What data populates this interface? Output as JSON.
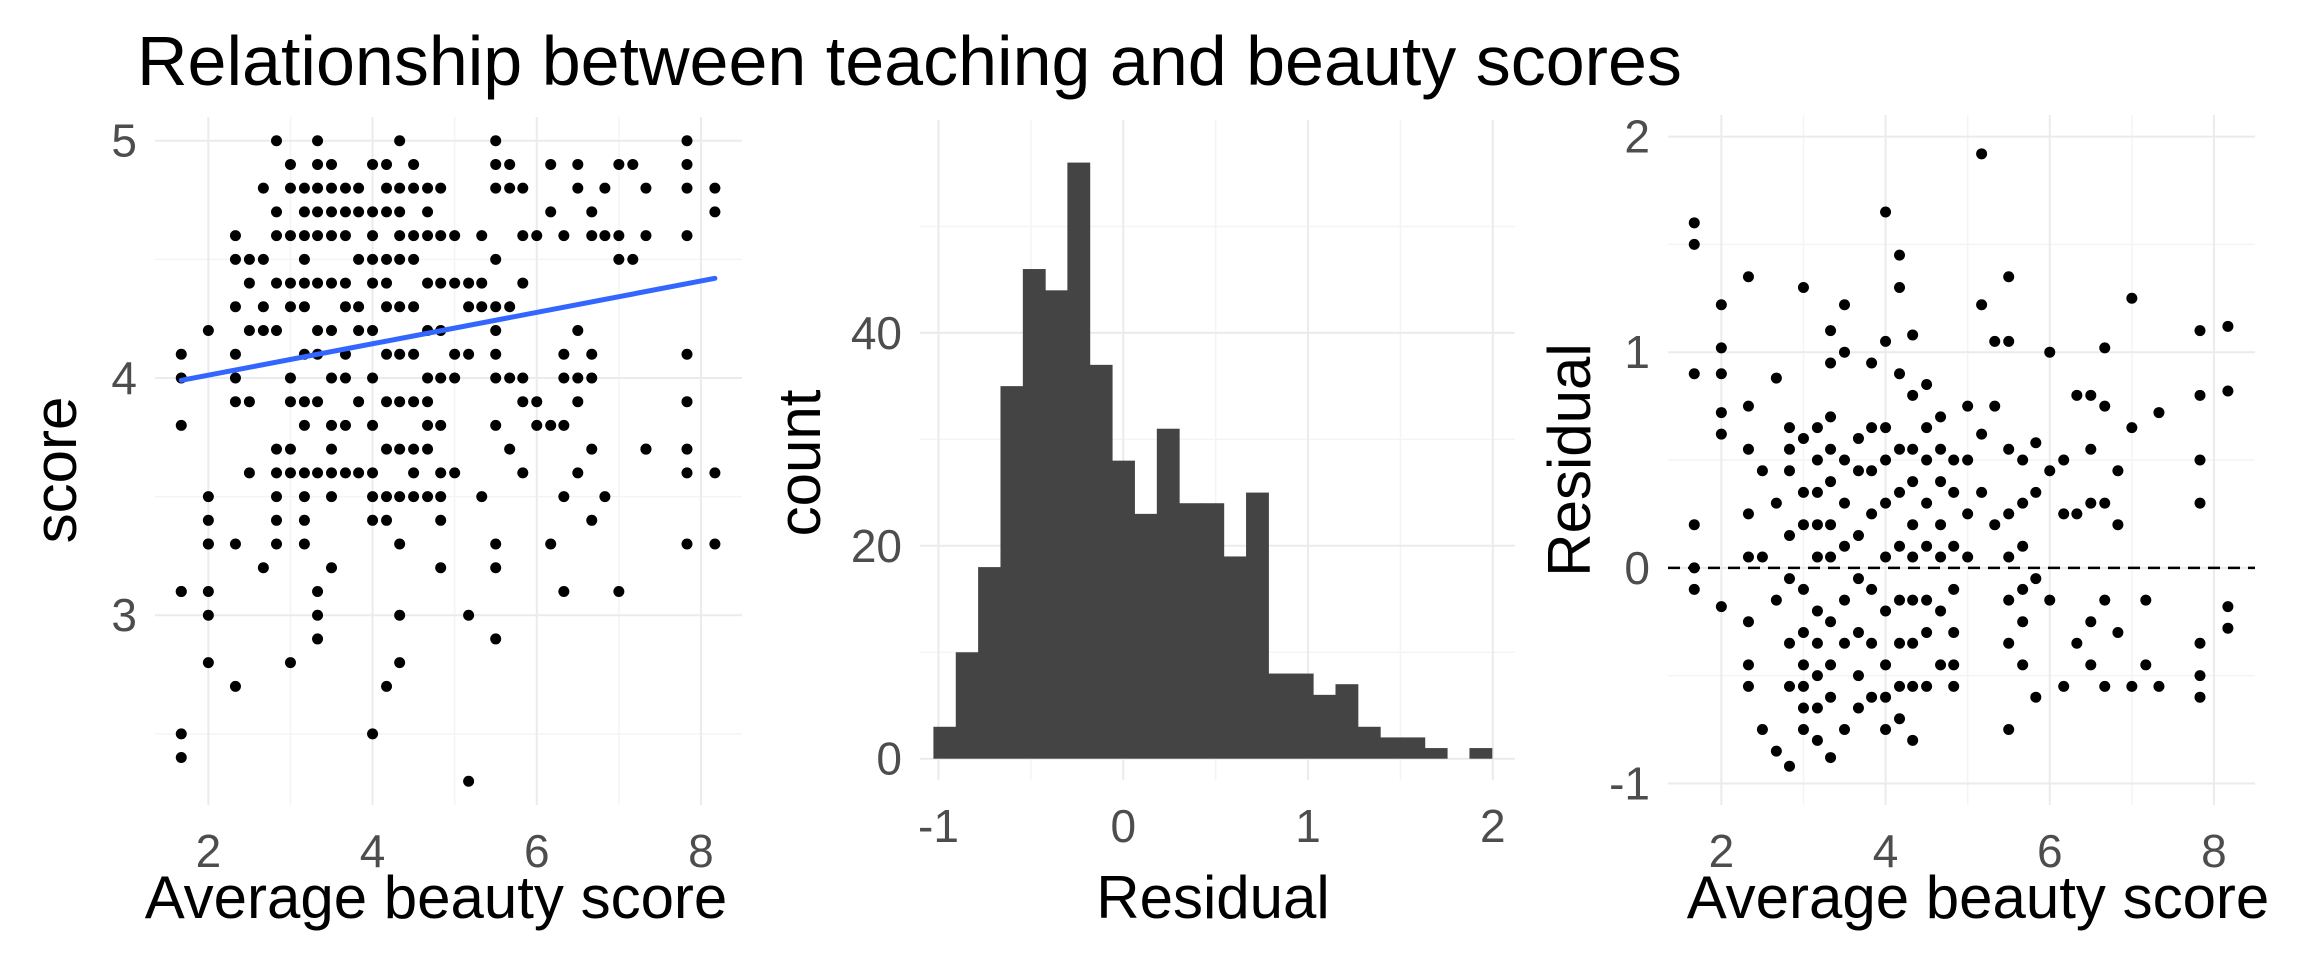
{
  "title": "Relationship between teaching and beauty scores",
  "colors": {
    "point": "#000000",
    "fit_line": "#3366FF",
    "bar": "#444444",
    "grid": "#EBEBEB",
    "tick_text": "#4D4D4D"
  },
  "chart_data": [
    {
      "type": "scatter",
      "xlabel": "Average beauty score",
      "ylabel": "score",
      "xlim": [
        1.35,
        8.5
      ],
      "ylim": [
        2.2,
        5.1
      ],
      "xticks": [
        "2",
        "4",
        "6",
        "8"
      ],
      "yticks": [
        "3",
        "4",
        "5"
      ],
      "grid": true,
      "fit_line": {
        "x": [
          1.67,
          8.17
        ],
        "y": [
          3.99,
          4.42
        ]
      },
      "x": [
        1.67,
        1.67,
        1.67,
        1.67,
        1.67,
        1.67,
        1.67,
        2.0,
        2.0,
        2.0,
        2.0,
        2.0,
        2.0,
        2.0,
        2.0,
        2.33,
        2.33,
        2.33,
        2.33,
        2.33,
        2.33,
        2.33,
        2.33,
        2.5,
        2.5,
        2.5,
        2.5,
        2.5,
        2.67,
        2.67,
        2.67,
        2.67,
        2.67,
        2.83,
        2.83,
        2.83,
        2.83,
        2.83,
        2.83,
        2.83,
        2.83,
        2.83,
        2.83,
        3.0,
        3.0,
        3.0,
        3.0,
        3.0,
        3.0,
        3.0,
        3.0,
        3.0,
        3.0,
        3.17,
        3.17,
        3.17,
        3.17,
        3.17,
        3.17,
        3.17,
        3.17,
        3.17,
        3.17,
        3.17,
        3.17,
        3.17,
        3.33,
        3.33,
        3.33,
        3.33,
        3.33,
        3.33,
        3.33,
        3.33,
        3.33,
        3.33,
        3.33,
        3.33,
        3.33,
        3.5,
        3.5,
        3.5,
        3.5,
        3.5,
        3.5,
        3.5,
        3.5,
        3.5,
        3.5,
        3.5,
        3.5,
        3.67,
        3.67,
        3.67,
        3.67,
        3.67,
        3.67,
        3.67,
        3.67,
        3.67,
        3.83,
        3.83,
        3.83,
        3.83,
        3.83,
        3.83,
        3.83,
        4.0,
        4.0,
        4.0,
        4.0,
        4.0,
        4.0,
        4.0,
        4.0,
        4.0,
        4.0,
        4.0,
        4.0,
        4.17,
        4.17,
        4.17,
        4.17,
        4.17,
        4.17,
        4.17,
        4.17,
        4.17,
        4.17,
        4.17,
        4.17,
        4.33,
        4.33,
        4.33,
        4.33,
        4.33,
        4.33,
        4.33,
        4.33,
        4.33,
        4.33,
        4.33,
        4.33,
        4.33,
        4.5,
        4.5,
        4.5,
        4.5,
        4.5,
        4.5,
        4.5,
        4.5,
        4.5,
        4.5,
        4.67,
        4.67,
        4.67,
        4.67,
        4.67,
        4.67,
        4.67,
        4.67,
        4.67,
        4.67,
        4.83,
        4.83,
        4.83,
        4.83,
        4.83,
        4.83,
        4.83,
        4.83,
        4.83,
        4.83,
        5.0,
        5.0,
        5.0,
        5.0,
        5.0,
        5.17,
        5.17,
        5.17,
        5.17,
        5.17,
        5.33,
        5.33,
        5.33,
        5.33,
        5.5,
        5.5,
        5.5,
        5.5,
        5.5,
        5.5,
        5.5,
        5.5,
        5.5,
        5.5,
        5.5,
        5.5,
        5.67,
        5.67,
        5.67,
        5.67,
        5.67,
        5.83,
        5.83,
        5.83,
        5.83,
        5.83,
        5.83,
        6.0,
        6.0,
        6.0,
        6.17,
        6.17,
        6.17,
        6.17,
        6.33,
        6.33,
        6.33,
        6.33,
        6.33,
        6.33,
        6.5,
        6.5,
        6.5,
        6.5,
        6.5,
        6.5,
        6.67,
        6.67,
        6.67,
        6.67,
        6.67,
        6.67,
        6.83,
        6.83,
        6.83,
        7.0,
        7.0,
        7.0,
        7.0,
        7.17,
        7.17,
        7.33,
        7.33,
        7.33,
        7.33,
        7.83,
        7.83,
        7.83,
        7.83,
        7.83,
        7.83,
        7.83,
        7.83,
        7.83,
        8.17,
        8.17,
        8.17,
        8.17
      ],
      "y": [
        4.1,
        4.0,
        3.8,
        3.1,
        2.5,
        2.4,
        3.1,
        4.2,
        3.4,
        3.3,
        3.1,
        3.0,
        2.8,
        3.5,
        3.3,
        4.6,
        4.5,
        4.3,
        4.1,
        4.0,
        3.9,
        3.3,
        2.7,
        4.5,
        4.4,
        4.2,
        3.9,
        3.6,
        4.8,
        4.5,
        4.3,
        4.2,
        3.2,
        5.0,
        4.7,
        4.6,
        4.4,
        4.2,
        3.7,
        3.6,
        3.5,
        3.4,
        3.3,
        4.9,
        4.8,
        4.6,
        4.4,
        4.3,
        4.0,
        3.9,
        3.7,
        3.6,
        2.8,
        4.8,
        4.7,
        4.6,
        4.5,
        4.4,
        4.3,
        4.1,
        3.9,
        3.8,
        3.6,
        3.5,
        3.4,
        3.3,
        5.0,
        4.9,
        4.8,
        4.7,
        4.6,
        4.4,
        4.2,
        4.1,
        3.9,
        3.6,
        3.1,
        3.0,
        2.9,
        4.9,
        4.8,
        4.7,
        4.6,
        4.4,
        4.2,
        4.0,
        3.8,
        3.7,
        3.6,
        3.2,
        3.5,
        4.8,
        4.7,
        4.6,
        4.4,
        4.3,
        4.1,
        4.0,
        3.8,
        3.6,
        4.8,
        4.7,
        4.5,
        4.3,
        4.2,
        3.9,
        3.6,
        4.9,
        4.7,
        4.6,
        4.5,
        4.4,
        4.2,
        4.0,
        3.8,
        3.6,
        3.5,
        2.5,
        3.4,
        4.9,
        4.8,
        4.7,
        4.5,
        4.4,
        4.3,
        4.1,
        3.9,
        3.7,
        3.5,
        3.4,
        2.7,
        5.0,
        4.8,
        4.7,
        4.6,
        4.5,
        4.3,
        4.1,
        3.9,
        3.7,
        3.5,
        3.3,
        3.0,
        2.8,
        4.9,
        4.8,
        4.6,
        4.5,
        4.3,
        4.1,
        3.9,
        3.6,
        3.7,
        3.5,
        4.8,
        4.7,
        4.6,
        4.4,
        4.2,
        4.0,
        3.9,
        3.8,
        3.7,
        3.5,
        4.8,
        4.6,
        4.4,
        4.2,
        4.0,
        3.8,
        3.6,
        3.4,
        3.2,
        3.5,
        4.6,
        4.4,
        4.1,
        4.0,
        3.6,
        4.4,
        4.3,
        4.1,
        3.0,
        2.3,
        4.6,
        4.4,
        4.3,
        3.5,
        5.0,
        4.9,
        4.8,
        4.5,
        4.3,
        4.1,
        4.0,
        3.8,
        3.3,
        3.2,
        2.9,
        4.2,
        4.9,
        4.8,
        4.3,
        4.0,
        3.7,
        4.8,
        4.6,
        4.4,
        4.0,
        3.9,
        3.6,
        4.6,
        3.8,
        3.9,
        4.9,
        4.7,
        3.8,
        3.3,
        4.6,
        4.1,
        4.0,
        3.8,
        3.5,
        3.1,
        4.9,
        4.8,
        4.2,
        4.0,
        3.9,
        3.6,
        4.7,
        4.6,
        4.1,
        4.0,
        3.7,
        3.4,
        4.8,
        4.6,
        3.5,
        4.9,
        4.6,
        4.5,
        3.1,
        4.9,
        4.5,
        4.8,
        4.6,
        3.7,
        3.7,
        5.0,
        4.9,
        4.8,
        4.6,
        4.1,
        3.9,
        3.7,
        3.6,
        3.3,
        4.8,
        4.7,
        3.6,
        3.3
      ]
    },
    {
      "type": "bar",
      "xlabel": "Residual",
      "ylabel": "count",
      "xlim": [
        -1.1,
        2.12
      ],
      "ylim": [
        -2,
        60
      ],
      "xticks": [
        "-1",
        "0",
        "1",
        "2"
      ],
      "yticks": [
        "0",
        "20",
        "40"
      ],
      "grid": true,
      "bin_width": 0.1209,
      "x": [
        -0.967,
        -0.846,
        -0.725,
        -0.604,
        -0.483,
        -0.363,
        -0.242,
        -0.121,
        0.0,
        0.121,
        0.242,
        0.363,
        0.483,
        0.604,
        0.725,
        0.846,
        0.967,
        1.088,
        1.209,
        1.33,
        1.451,
        1.571,
        1.692,
        1.813,
        1.934
      ],
      "values": [
        3,
        10,
        18,
        35,
        46,
        44,
        56,
        37,
        28,
        23,
        31,
        24,
        24,
        19,
        25,
        8,
        8,
        6,
        7,
        3,
        2,
        2,
        1,
        0,
        1
      ]
    },
    {
      "type": "scatter",
      "xlabel": "Average beauty score",
      "ylabel": "Residual",
      "xlim": [
        1.35,
        8.5
      ],
      "ylim": [
        -1.1,
        2.1
      ],
      "xticks": [
        "2",
        "4",
        "6",
        "8"
      ],
      "yticks": [
        "-1",
        "0",
        "1",
        "2"
      ],
      "grid": true,
      "hline": 0,
      "x": [
        1.67,
        1.67,
        1.67,
        1.67,
        1.67,
        1.67,
        2.0,
        2.0,
        2.0,
        2.0,
        2.0,
        2.0,
        2.33,
        2.33,
        2.33,
        2.33,
        2.33,
        2.33,
        2.33,
        2.33,
        2.5,
        2.5,
        2.5,
        2.67,
        2.67,
        2.67,
        2.67,
        2.83,
        2.83,
        2.83,
        2.83,
        2.83,
        2.83,
        2.83,
        2.83,
        3.0,
        3.0,
        3.0,
        3.0,
        3.0,
        3.0,
        3.0,
        3.0,
        3.0,
        3.0,
        3.17,
        3.17,
        3.17,
        3.17,
        3.17,
        3.17,
        3.17,
        3.17,
        3.17,
        3.17,
        3.33,
        3.33,
        3.33,
        3.33,
        3.33,
        3.33,
        3.33,
        3.33,
        3.33,
        3.33,
        3.33,
        3.5,
        3.5,
        3.5,
        3.5,
        3.5,
        3.5,
        3.5,
        3.5,
        3.67,
        3.67,
        3.67,
        3.67,
        3.67,
        3.67,
        3.67,
        3.83,
        3.83,
        3.83,
        3.83,
        3.83,
        3.83,
        3.83,
        4.0,
        4.0,
        4.0,
        4.0,
        4.0,
        4.0,
        4.0,
        4.0,
        4.0,
        4.0,
        4.17,
        4.17,
        4.17,
        4.17,
        4.17,
        4.17,
        4.17,
        4.17,
        4.17,
        4.17,
        4.33,
        4.33,
        4.33,
        4.33,
        4.33,
        4.33,
        4.33,
        4.33,
        4.33,
        4.33,
        4.5,
        4.5,
        4.5,
        4.5,
        4.5,
        4.5,
        4.5,
        4.5,
        4.67,
        4.67,
        4.67,
        4.67,
        4.67,
        4.67,
        4.67,
        4.83,
        4.83,
        4.83,
        4.83,
        4.83,
        4.83,
        4.83,
        5.0,
        5.0,
        5.0,
        5.0,
        5.17,
        5.17,
        5.17,
        5.17,
        5.33,
        5.33,
        5.33,
        5.5,
        5.5,
        5.5,
        5.5,
        5.5,
        5.5,
        5.5,
        5.5,
        5.67,
        5.67,
        5.67,
        5.67,
        5.67,
        5.67,
        5.83,
        5.83,
        5.83,
        5.83,
        6.0,
        6.0,
        6.0,
        6.17,
        6.17,
        6.17,
        6.33,
        6.33,
        6.33,
        6.5,
        6.5,
        6.5,
        6.5,
        6.5,
        6.67,
        6.67,
        6.67,
        6.67,
        6.67,
        6.83,
        6.83,
        6.83,
        7.0,
        7.0,
        7.0,
        7.17,
        7.17,
        7.33,
        7.33,
        7.83,
        7.83,
        7.83,
        7.83,
        7.83,
        7.83,
        7.83,
        8.17,
        8.17,
        8.17,
        8.17
      ],
      "y": [
        1.6,
        1.5,
        0.9,
        0.2,
        0.0,
        -0.1,
        1.22,
        1.02,
        0.9,
        0.72,
        0.62,
        -0.18,
        1.35,
        0.75,
        0.55,
        0.25,
        0.05,
        -0.25,
        -0.45,
        -0.55,
        0.45,
        0.05,
        -0.75,
        0.88,
        0.3,
        -0.15,
        -0.85,
        0.65,
        0.55,
        0.45,
        0.15,
        -0.05,
        -0.35,
        -0.55,
        -0.92,
        1.3,
        0.6,
        0.35,
        0.2,
        -0.1,
        -0.3,
        -0.45,
        -0.55,
        -0.65,
        -0.75,
        0.65,
        0.5,
        0.35,
        0.2,
        0.05,
        -0.2,
        -0.35,
        -0.5,
        -0.65,
        -0.8,
        1.1,
        0.95,
        0.7,
        0.55,
        0.4,
        0.2,
        0.05,
        -0.25,
        -0.45,
        -0.6,
        -0.88,
        1.22,
        1.0,
        0.5,
        0.3,
        0.1,
        -0.15,
        -0.35,
        -0.75,
        0.6,
        0.45,
        0.15,
        -0.05,
        -0.3,
        -0.5,
        -0.65,
        0.95,
        0.65,
        0.45,
        0.25,
        -0.1,
        -0.35,
        -0.6,
        1.65,
        1.05,
        0.65,
        0.5,
        0.3,
        0.05,
        -0.2,
        -0.45,
        -0.6,
        -0.75,
        1.45,
        1.3,
        0.9,
        0.55,
        0.35,
        0.1,
        -0.15,
        -0.35,
        -0.55,
        -0.7,
        1.08,
        0.8,
        0.55,
        0.4,
        0.2,
        0.05,
        -0.15,
        -0.35,
        -0.55,
        -0.8,
        0.85,
        0.65,
        0.5,
        0.3,
        0.1,
        -0.15,
        -0.3,
        -0.55,
        0.7,
        0.55,
        0.4,
        0.2,
        0.05,
        -0.2,
        -0.45,
        0.5,
        0.35,
        0.1,
        -0.1,
        -0.3,
        -0.45,
        -0.55,
        0.75,
        0.5,
        0.25,
        0.05,
        1.92,
        1.22,
        0.62,
        0.35,
        1.05,
        0.75,
        0.2,
        1.35,
        1.05,
        0.55,
        0.25,
        0.05,
        -0.15,
        -0.35,
        -0.75,
        0.5,
        0.3,
        0.1,
        -0.1,
        -0.25,
        -0.45,
        0.58,
        0.35,
        -0.05,
        -0.6,
        1.0,
        0.45,
        -0.15,
        0.5,
        0.25,
        -0.55,
        0.8,
        0.25,
        -0.35,
        0.8,
        0.55,
        0.3,
        -0.25,
        -0.45,
        1.02,
        0.75,
        0.3,
        -0.15,
        -0.55,
        0.45,
        0.2,
        -0.3,
        1.25,
        0.65,
        -0.55,
        -0.15,
        -0.45,
        0.72,
        -0.55,
        1.1,
        0.8,
        0.5,
        0.3,
        -0.35,
        -0.5,
        -0.6,
        1.12,
        0.82,
        -0.18,
        -0.28
      ]
    }
  ]
}
